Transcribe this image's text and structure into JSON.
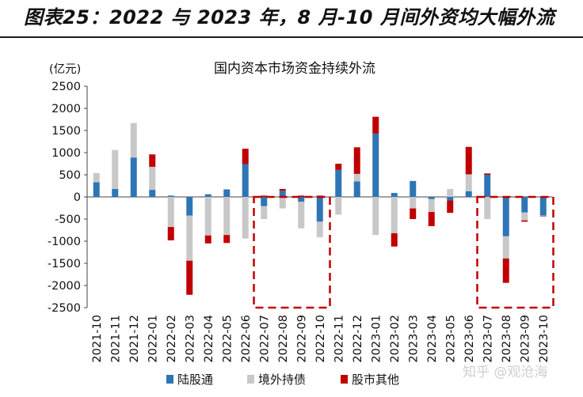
{
  "figure_title": "图表25：2022 与 2023 年，8 月-10 月间外资均大幅外流",
  "watermark": "知乎 @观沧海",
  "colors": {
    "lugutong": "#2e75b6",
    "jingwai": "#c8c8c8",
    "gushi": "#c00000",
    "highlight": "#c00000",
    "axis": "#444444"
  },
  "chart_data": {
    "type": "bar",
    "stacked": true,
    "title": "国内资本市场资金持续外流",
    "unit_label": "(亿元)",
    "ylim": [
      -2500,
      2500
    ],
    "yticks": [
      2500,
      2000,
      1500,
      1000,
      500,
      0,
      -500,
      -1000,
      -1500,
      -2000,
      -2500
    ],
    "categories": [
      "2021-10",
      "2021-11",
      "2021-12",
      "2022-01",
      "2022-02",
      "2022-03",
      "2022-04",
      "2022-05",
      "2022-06",
      "2022-07",
      "2022-08",
      "2022-09",
      "2022-10",
      "2022-11",
      "2022-12",
      "2023-01",
      "2023-02",
      "2023-03",
      "2023-04",
      "2023-05",
      "2023-06",
      "2023-07",
      "2023-08",
      "2023-09",
      "2023-10"
    ],
    "series": [
      {
        "name": "陆股通",
        "color": "#2e75b6",
        "values": [
          330,
          180,
          890,
          160,
          30,
          -420,
          60,
          170,
          740,
          -210,
          140,
          -110,
          -560,
          610,
          350,
          1430,
          90,
          360,
          -50,
          -80,
          130,
          500,
          -890,
          -350,
          -420
        ]
      },
      {
        "name": "境外持债",
        "color": "#c8c8c8",
        "values": [
          210,
          880,
          780,
          520,
          -680,
          -1020,
          -870,
          -860,
          -940,
          -290,
          -260,
          -600,
          -350,
          -400,
          170,
          -860,
          -820,
          -260,
          -290,
          180,
          380,
          -500,
          -500,
          -180,
          -10
        ]
      },
      {
        "name": "股市其他",
        "color": "#c00000",
        "values": [
          0,
          0,
          0,
          280,
          -300,
          -770,
          -180,
          -180,
          350,
          30,
          40,
          30,
          30,
          140,
          600,
          380,
          -300,
          -240,
          -320,
          -280,
          620,
          30,
          -550,
          -30,
          -10
        ]
      }
    ],
    "highlight_ranges": [
      [
        "2022-07",
        "2022-10"
      ],
      [
        "2023-07",
        "2023-10"
      ]
    ]
  }
}
